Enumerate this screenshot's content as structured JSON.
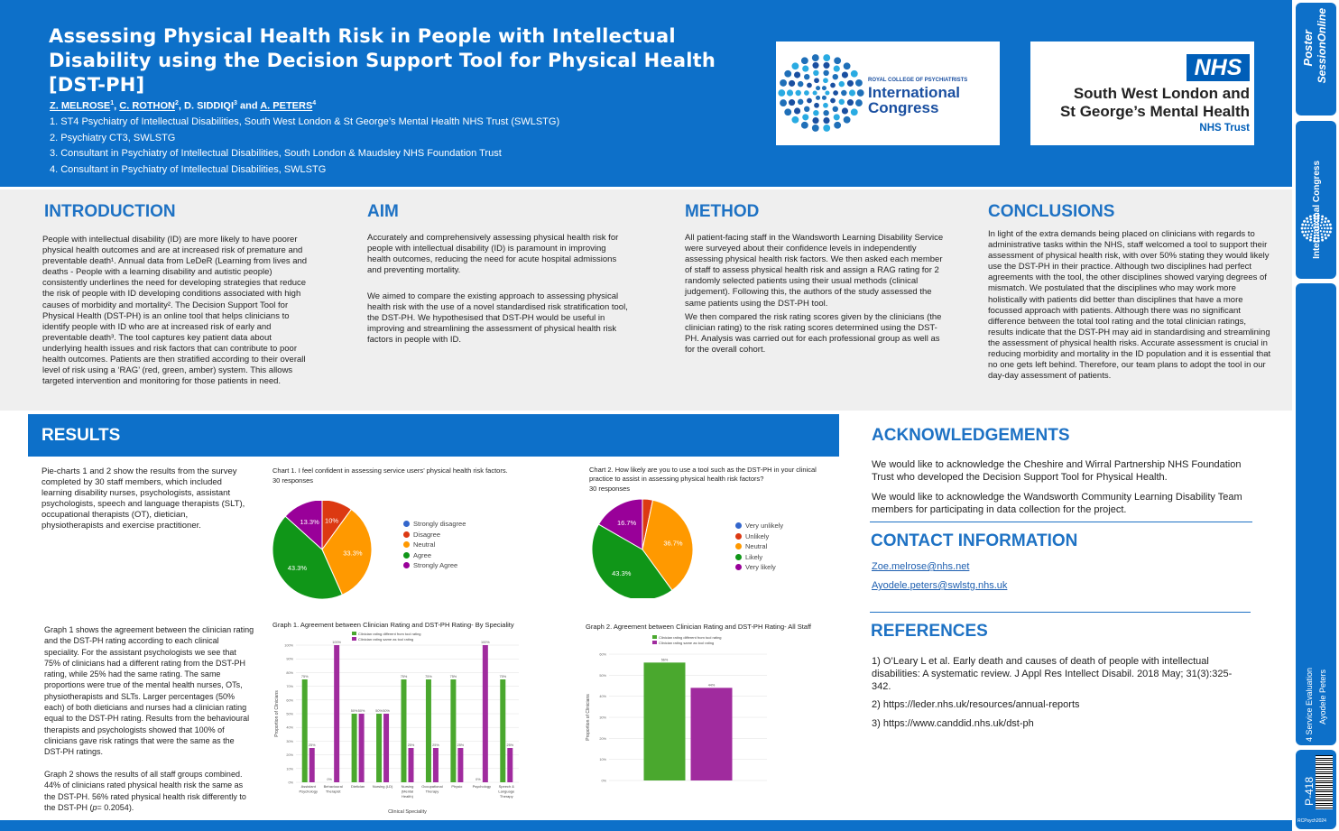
{
  "header": {
    "title": "Assessing Physical Health Risk in People with Intellectual Disability using the Decision Support Tool for Physical Health [DST-PH]",
    "authors": [
      {
        "name": "Z. MELROSE",
        "sup": "1",
        "underline": true
      },
      {
        "name": "C. ROTHON",
        "sup": "2",
        "underline": true
      },
      {
        "name": "D. SIDDIQI",
        "sup": "3",
        "underline": false
      },
      {
        "name": "A. PETERS",
        "sup": "4",
        "underline": true
      }
    ],
    "author_sep": ", ",
    "author_and": " and ",
    "affiliations": [
      "1.  ST4 Psychiatry of Intellectual Disabilities, South West London & St George’s Mental Health NHS Trust (SWLSTG)",
      "2.  Psychiatry CT3, SWLSTG",
      "3.  Consultant in Psychiatry of Intellectual Disabilities, South London & Maudsley NHS Foundation Trust",
      "4.  Consultant in Psychiatry of Intellectual Disabilities, SWLSTG"
    ],
    "rcpsych_logo": {
      "small": "ROYAL COLLEGE OF PSYCHIATRISTS",
      "line1": "International",
      "line2": "Congress"
    },
    "nhs_logo": {
      "badge": "NHS",
      "line1": "South West London and",
      "line2": "St George’s Mental Health",
      "line3": "NHS Trust"
    }
  },
  "introduction": {
    "heading": "INTRODUCTION",
    "text": "People with intellectual disability (ID) are more likely to have poorer physical health outcomes and are at increased risk of premature and preventable death¹. Annual data from LeDeR (Learning from lives and deaths - People with a learning disability and autistic people) consistently underlines the need for developing strategies that reduce the risk of people with ID developing conditions associated with high causes of morbidity and mortality². The Decision Support Tool for Physical Health (DST-PH) is an online tool that helps clinicians to identify people with ID who are at increased risk of early and preventable death³. The tool captures key patient data about underlying health issues and risk factors that can contribute to poor health outcomes. Patients are then stratified according to their overall level of risk using a ‘RAG’ (red, green, amber) system. This allows targeted intervention and monitoring for those patients in need."
  },
  "aim": {
    "heading": "AIM",
    "p1": "Accurately and comprehensively assessing physical health risk for people with intellectual disability (ID) is paramount in improving health outcomes, reducing the need for acute hospital admissions and preventing mortality.",
    "p2": "We aimed to compare the existing approach to assessing physical health risk with the use of a novel standardised risk stratification tool, the DST-PH. We hypothesised that DST-PH would be useful in improving and streamlining the assessment of physical health risk factors in people with ID."
  },
  "method": {
    "heading": "METHOD",
    "p1": "All patient-facing staff in the Wandsworth Learning Disability Service were surveyed about their confidence levels in independently assessing physical health risk factors. We then asked each member of staff to assess physical health risk and assign a RAG rating for 2 randomly selected patients using their usual methods (clinical judgement). Following this, the authors of the study assessed the same patients using the DST-PH tool.",
    "p2": "We then compared the risk rating scores given by the clinicians (the clinician rating) to the risk rating scores determined using the DST-PH. Analysis was carried out for each professional group as well as for the overall cohort."
  },
  "conclusions": {
    "heading": "CONCLUSIONS",
    "text": "In light of the extra demands being placed on clinicians with regards to administrative tasks within the NHS, staff welcomed a tool to support their assessment of physical health risk, with over 50% stating they would likely use the DST-PH in their practice. Although two disciplines had perfect agreements with the tool, the other disciplines showed varying degrees of mismatch. We postulated that the disciplines who may work more holistically with patients did better than disciplines that have a more focussed approach with patients. Although there was no significant difference between the total tool rating and the total clinician ratings, results indicate that the DST-PH may aid in standardising and streamlining the assessment of physical health risks. Accurate assessment is crucial in reducing morbidity and mortality in the ID population and it is essential that no one gets left behind. Therefore, our team plans to adopt the tool in our day-day assessment of patients."
  },
  "results": {
    "heading": "RESULTS",
    "pie_text": "Pie-charts 1 and 2 show the results from the survey completed by 30 staff members, which included learning disability nurses, psychologists, assistant psychologists, speech and language therapists (SLT), occupational therapists (OT), dietician, physiotherapists and exercise practitioner.",
    "graph_text_1": "Graph 1 shows the agreement between the clinician rating and the DST-PH rating according to each clinical speciality. For the assistant psychologists we see that 75% of clinicians had a different rating from the DST-PH rating, while 25% had the same rating. The same proportions were true of the mental health nurses, OTs, physiotherapists and SLTs. Larger percentages (50% each) of both dieticians and nurses had a clinician rating equal to the DST-PH rating. Results from the behavioural therapists and psychologists showed that 100% of clinicians gave risk ratings that were the same as the DST-PH ratings.",
    "graph_text_2a": "Graph 2 shows the results of all staff groups combined. 44% of clinicians rated physical health risk the same as the DST-PH. 56% rated physical health risk differently to the DST-PH (",
    "graph_text_2b": "p",
    "graph_text_2c": "= 0.2054)."
  },
  "acknowledgements": {
    "heading": "ACKNOWLEDGEMENTS",
    "p1": "We would like to acknowledge the Cheshire and Wirral Partnership NHS Foundation Trust who developed the Decision Support Tool for Physical Health.",
    "p2": " We would like to acknowledge the Wandsworth Community Learning Disability Team members for participating in data collection for the project."
  },
  "contact": {
    "heading": "CONTACT INFORMATION",
    "email1": "Zoe.melrose@nhs.net",
    "email2": "Ayodele.peters@swlstg.nhs.uk"
  },
  "references": {
    "heading": "REFERENCES",
    "items": [
      "1) O’Leary L et al. Early death and causes of death of people with intellectual disabilities: A systematic review. J Appl Res Intellect Disabil. 2018 May; 31(3):325-342.",
      "2) https://leder.nhs.uk/resources/annual-reports",
      "3) https://www.canddid.nhs.uk/dst-ph"
    ]
  },
  "sidebar": {
    "brand1": "Poster",
    "brand2": "SessionOnline",
    "congress": "International Congress",
    "category": "4 Service Evaluation",
    "presenter": "Ayodele Peters",
    "poster_id": "P-418",
    "footer_code": "RCPsych2024"
  },
  "colors": {
    "primary_blue": "#0d70c9",
    "heading_blue": "#1e72c4",
    "strongly_disagree": "#3366cc",
    "disagree": "#dc3912",
    "neutral": "#ff9900",
    "agree": "#109618",
    "strongly_agree": "#990099",
    "bar_different": "#4aa82e",
    "bar_same": "#a02b9e"
  },
  "chart_data": [
    {
      "type": "pie",
      "title": "Chart 1. I feel confident in assessing service users’ physical health risk factors.",
      "subtitle": "30 responses",
      "labels": [
        "Strongly disagree",
        "Disagree",
        "Neutral",
        "Agree",
        "Strongly Agree"
      ],
      "values": [
        0,
        10,
        33.3,
        43.3,
        13.3
      ],
      "data_labels": [
        "",
        "10%",
        "33.3%",
        "43.3%",
        "13.3%"
      ],
      "legend": "right"
    },
    {
      "type": "pie",
      "title": "Chart 2. How likely are you to use a tool such as the DST-PH in your clinical practice to assist in assessing physical health risk factors?",
      "subtitle": "30 responses",
      "labels": [
        "Very unlikely",
        "Unlikely",
        "Neutral",
        "Likely",
        "Very likely"
      ],
      "values": [
        0,
        3.3,
        36.7,
        43.3,
        16.7
      ],
      "data_labels": [
        "",
        "",
        "36.7%",
        "43.3%",
        "16.7%"
      ],
      "legend": "right"
    },
    {
      "type": "bar",
      "title": "Graph 1. Agreement between Clinician Rating and DST-PH Rating- By Speciality",
      "categories": [
        "Assistant Psychology",
        "Behavioural Therapist",
        "Dietician",
        "Nursing (LD)",
        "Nursing (Mental Health)",
        "Occupational Therapy",
        "Physio",
        "Psychology",
        "Speech & Language Therapy"
      ],
      "series": [
        {
          "name": "Clinician rating different from tool rating",
          "values": [
            75,
            0,
            50,
            50,
            75,
            75,
            75,
            0,
            75
          ]
        },
        {
          "name": "Clinician rating same as tool rating",
          "values": [
            25,
            100,
            50,
            50,
            25,
            25,
            25,
            100,
            25
          ]
        }
      ],
      "value_labels": [
        [
          "75%",
          "0%",
          "50%",
          "50%",
          "75%",
          "75%",
          "75%",
          "0%",
          "75%"
        ],
        [
          "25%",
          "100%",
          "50%",
          "50%",
          "25%",
          "25%",
          "25%",
          "100%",
          "25%"
        ]
      ],
      "xlabel": "Clinical Speciality",
      "ylabel": "Proportion of Clinicians",
      "ylim": [
        0,
        100
      ],
      "yticks": [
        "0%",
        "10%",
        "20%",
        "30%",
        "40%",
        "50%",
        "60%",
        "70%",
        "80%",
        "90%",
        "100%"
      ],
      "legend": "top"
    },
    {
      "type": "bar",
      "title": "Graph 2. Agreement between Clinician Rating and DST-PH Rating- All Staff",
      "categories": [
        ""
      ],
      "series": [
        {
          "name": "Clinician rating different from tool rating",
          "values": [
            56
          ]
        },
        {
          "name": "Clinician rating same as tool rating",
          "values": [
            44
          ]
        }
      ],
      "value_labels": [
        [
          "56%"
        ],
        [
          "44%"
        ]
      ],
      "ylabel": "Proportion of Clinicians",
      "ylim": [
        0,
        60
      ],
      "yticks": [
        "0%",
        "10%",
        "20%",
        "30%",
        "40%",
        "50%",
        "60%"
      ],
      "legend": "top"
    }
  ]
}
